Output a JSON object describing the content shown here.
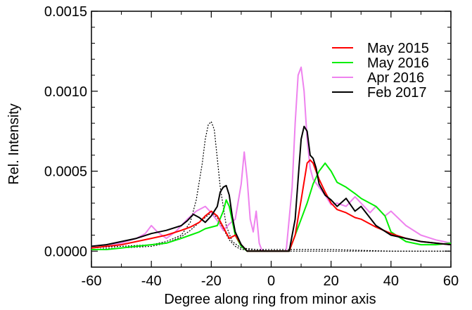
{
  "chart_data": {
    "type": "line",
    "xlabel": "Degree along ring from minor axis",
    "ylabel": "Rel. Intensity",
    "xlim": [
      -60,
      60
    ],
    "ylim": [
      -0.0001,
      0.0015
    ],
    "x_ticks": [
      "-60",
      "-40",
      "-20",
      "0",
      "20",
      "40",
      "60"
    ],
    "x_tick_values": [
      -60,
      -40,
      -20,
      0,
      20,
      40,
      60
    ],
    "y_ticks": [
      "0.0000",
      "0.0005",
      "0.0010",
      "0.0015"
    ],
    "y_tick_values": [
      0.0,
      0.0005,
      0.001,
      0.0015
    ],
    "legend_position": "top-right",
    "grid": false,
    "series": [
      {
        "name": "May 2015",
        "color": "#ff0000",
        "x": [
          -60,
          -55,
          -50,
          -45,
          -40,
          -35,
          -30,
          -27,
          -24,
          -22,
          -20,
          -18,
          -16,
          -14,
          -12,
          -10,
          -8,
          6,
          8,
          10,
          12,
          13,
          14,
          16,
          18,
          20,
          22,
          25,
          28,
          30,
          35,
          40,
          45,
          50,
          55,
          60
        ],
        "y": [
          2e-05,
          3e-05,
          4e-05,
          6e-05,
          8e-05,
          0.0001,
          0.00013,
          0.00015,
          0.00018,
          0.00022,
          0.00025,
          0.00022,
          0.00015,
          8e-05,
          0.0001,
          4e-05,
          0.0,
          0.0,
          0.0001,
          0.00032,
          0.00055,
          0.00057,
          0.00055,
          0.00045,
          0.00037,
          0.0003,
          0.00026,
          0.00024,
          0.00021,
          0.0002,
          0.00015,
          0.00011,
          8e-05,
          6e-05,
          5e-05,
          4e-05
        ]
      },
      {
        "name": "May 2016",
        "color": "#00ee00",
        "x": [
          -60,
          -55,
          -50,
          -45,
          -40,
          -35,
          -30,
          -27,
          -24,
          -22,
          -20,
          -18,
          -16,
          -15,
          -14,
          -12,
          -10,
          -8,
          6,
          8,
          10,
          12,
          14,
          16,
          18,
          20,
          22,
          25,
          28,
          30,
          35,
          38,
          40,
          45,
          50,
          55,
          60
        ],
        "y": [
          1e-05,
          1e-05,
          2e-05,
          3e-05,
          4e-05,
          5e-05,
          8e-05,
          0.0001,
          0.00012,
          0.00014,
          0.00015,
          0.00016,
          0.00025,
          0.00032,
          0.00028,
          0.0001,
          3e-05,
          0.0,
          0.0,
          0.0001,
          0.0002,
          0.0003,
          0.00042,
          0.0005,
          0.00055,
          0.0005,
          0.00043,
          0.0004,
          0.00036,
          0.00033,
          0.00028,
          0.00022,
          0.00012,
          6e-05,
          4e-05,
          4e-05,
          5e-05
        ]
      },
      {
        "name": "Apr 2016",
        "color": "#ee82ee",
        "x": [
          -60,
          -55,
          -50,
          -45,
          -42,
          -40,
          -38,
          -35,
          -32,
          -30,
          -28,
          -25,
          -22,
          -20,
          -18,
          -16,
          -14,
          -12,
          -10,
          -9,
          -8,
          -7,
          -6,
          -5,
          -4,
          -3,
          5,
          7,
          8,
          9,
          10,
          11,
          12,
          13,
          14,
          16,
          18,
          20,
          22,
          25,
          28,
          30,
          33,
          35,
          38,
          40,
          45,
          50,
          55,
          60
        ],
        "y": [
          3e-05,
          4e-05,
          5e-05,
          8e-05,
          0.00011,
          0.00016,
          0.00012,
          8e-05,
          0.00012,
          0.00016,
          0.0002,
          0.00025,
          0.00028,
          0.00024,
          0.00019,
          0.00013,
          0.00017,
          0.0002,
          0.00042,
          0.00062,
          0.00045,
          0.0002,
          0.00012,
          0.00025,
          5e-05,
          0.0,
          0.0,
          0.0004,
          0.0008,
          0.0011,
          0.00115,
          0.001,
          0.0007,
          0.00052,
          0.00045,
          0.0004,
          0.00035,
          0.00029,
          0.0003,
          0.00028,
          0.00034,
          0.0003,
          0.00024,
          0.00028,
          0.00022,
          0.00025,
          0.00016,
          0.0001,
          7e-05,
          5e-05
        ]
      },
      {
        "name": "Feb 2017",
        "color": "#000000",
        "x": [
          -60,
          -55,
          -50,
          -45,
          -40,
          -35,
          -30,
          -28,
          -26,
          -24,
          -22,
          -20,
          -18,
          -17,
          -16,
          -15,
          -14,
          -13,
          -12,
          -10,
          -8,
          6,
          8,
          9,
          10,
          11,
          12,
          13,
          14,
          15,
          16,
          18,
          20,
          22,
          25,
          28,
          30,
          35,
          40,
          45,
          50,
          55,
          60
        ],
        "y": [
          3e-05,
          4e-05,
          6e-05,
          8e-05,
          0.00011,
          0.00013,
          0.00016,
          0.00019,
          0.00023,
          0.00021,
          0.00018,
          0.00022,
          0.00028,
          0.00037,
          0.0004,
          0.00041,
          0.00035,
          0.00022,
          0.00012,
          4e-05,
          0.0,
          0.0,
          0.0002,
          0.00045,
          0.0007,
          0.00078,
          0.00075,
          0.0006,
          0.00058,
          0.00052,
          0.00042,
          0.00035,
          0.00032,
          0.00028,
          0.00033,
          0.00025,
          0.00028,
          0.00016,
          0.0001,
          8e-05,
          6e-05,
          5e-05,
          4e-05
        ]
      },
      {
        "name": "",
        "color": "#000000",
        "dashed": true,
        "x": [
          -60,
          -50,
          -40,
          -35,
          -30,
          -27,
          -25,
          -23,
          -22,
          -21,
          -20,
          -19,
          -18,
          -17,
          -15,
          -13,
          -10,
          -5,
          0,
          10,
          20,
          40,
          60
        ],
        "y": [
          2e-05,
          3e-05,
          4e-05,
          6e-05,
          0.0001,
          0.00018,
          0.00032,
          0.00055,
          0.0007,
          0.00079,
          0.00081,
          0.00076,
          0.00058,
          0.0004,
          0.00016,
          6e-05,
          2e-05,
          1e-05,
          1e-05,
          1e-05,
          1e-05,
          0.0,
          0.0
        ]
      },
      {
        "name": "",
        "color": "#000000",
        "dashed": true,
        "x": [
          -60,
          -50,
          -40,
          -35,
          -30,
          -27,
          -24,
          -22,
          -20,
          -18,
          -16,
          -14,
          -12,
          -10,
          -5,
          0,
          20,
          60
        ],
        "y": [
          1e-05,
          2e-05,
          3e-05,
          5e-05,
          9e-05,
          0.00013,
          0.00018,
          0.00021,
          0.00024,
          0.00021,
          0.00014,
          7e-05,
          3e-05,
          1e-05,
          1e-05,
          0.0,
          0.0,
          0.0
        ]
      }
    ]
  }
}
